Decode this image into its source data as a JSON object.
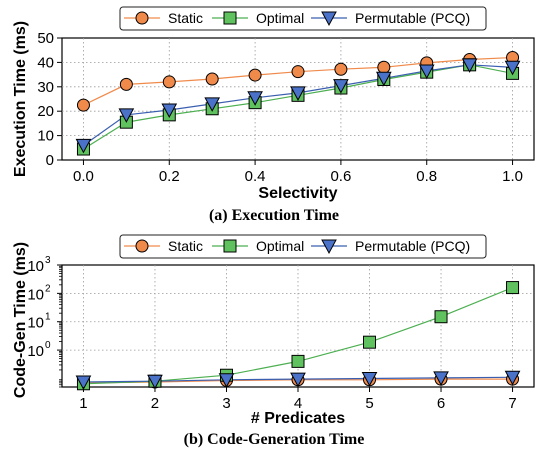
{
  "chart_data": [
    {
      "type": "line",
      "caption": "(a) Execution Time",
      "xlabel": "Selectivity",
      "ylabel": "Execution Time (ms)",
      "x": [
        0.0,
        0.1,
        0.2,
        0.3,
        0.4,
        0.5,
        0.6,
        0.7,
        0.8,
        0.9,
        1.0
      ],
      "xticks": [
        "0.0",
        "0.2",
        "0.4",
        "0.6",
        "0.8",
        "1.0"
      ],
      "xtick_values": [
        0.0,
        0.2,
        0.4,
        0.6,
        0.8,
        1.0
      ],
      "yticks": [
        "0",
        "10",
        "20",
        "30",
        "40",
        "50"
      ],
      "ytick_values": [
        0,
        10,
        20,
        30,
        40,
        50
      ],
      "xlim": [
        -0.05,
        1.05
      ],
      "ylim": [
        0,
        50
      ],
      "yscale": "linear",
      "grid": true,
      "legend": "top",
      "series": [
        {
          "name": "Static",
          "marker": "circle",
          "color": "#f08a4b",
          "line_color": "#f08a4b",
          "values": [
            22.5,
            31,
            32,
            33.2,
            34.8,
            36.2,
            37.2,
            38,
            39.8,
            41.2,
            42
          ]
        },
        {
          "name": "Optimal",
          "marker": "square",
          "color": "#5fc25f",
          "line_color": "#4caf50",
          "values": [
            4.5,
            15.5,
            18.5,
            21,
            23.5,
            26.5,
            29.5,
            33,
            36,
            39,
            35.5
          ]
        },
        {
          "name": "Permutable (PCQ)",
          "marker": "triangle-down",
          "color": "#4a72c8",
          "line_color": "#3b5fb0",
          "values": [
            6,
            18.5,
            20.5,
            23,
            25.5,
            27.5,
            30.5,
            33.5,
            36.5,
            39,
            38
          ]
        }
      ]
    },
    {
      "type": "line",
      "caption": "(b) Code-Generation Time",
      "xlabel": "# Predicates",
      "ylabel": "Code-Gen Time (ms)",
      "x": [
        1,
        2,
        3,
        4,
        5,
        6,
        7
      ],
      "xticks": [
        "1",
        "2",
        "3",
        "4",
        "5",
        "6",
        "7"
      ],
      "xtick_values": [
        1,
        2,
        3,
        4,
        5,
        6,
        7
      ],
      "ytick_values": [
        1,
        10,
        100,
        1000
      ],
      "yticks_base": [
        "10",
        "10",
        "10",
        "10"
      ],
      "yticks_exp": [
        "0",
        "1",
        "2",
        "3"
      ],
      "xlim": [
        0.7,
        7.3
      ],
      "ylim": [
        0.05,
        1000
      ],
      "yscale": "log",
      "grid": true,
      "legend": "top",
      "series": [
        {
          "name": "Static",
          "marker": "circle",
          "color": "#f08a4b",
          "line_color": "#f08a4b",
          "values": [
            0.07,
            0.075,
            0.085,
            0.09,
            0.09,
            0.095,
            0.095
          ]
        },
        {
          "name": "Optimal",
          "marker": "square",
          "color": "#5fc25f",
          "line_color": "#4caf50",
          "values": [
            0.065,
            0.08,
            0.13,
            0.4,
            1.9,
            15,
            160
          ]
        },
        {
          "name": "Permutable (PCQ)",
          "marker": "triangle-down",
          "color": "#4a72c8",
          "line_color": "#3b5fb0",
          "values": [
            0.075,
            0.08,
            0.09,
            0.095,
            0.1,
            0.105,
            0.11
          ]
        }
      ]
    }
  ]
}
